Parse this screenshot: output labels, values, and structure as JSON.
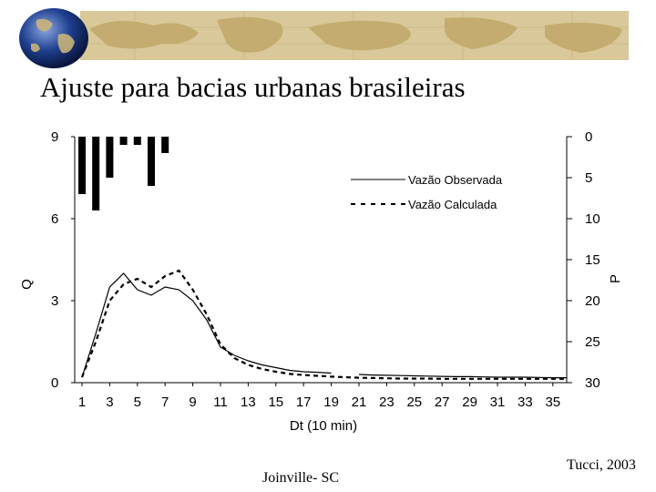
{
  "slide": {
    "title": "Ajuste para bacias urbanas brasileiras",
    "footer_left": "Joinville- SC",
    "footer_right": "Tucci, 2003"
  },
  "theme": {
    "banner_color": "#d9c89a",
    "map_color": "#c4ac70",
    "globe_ocean": "#1f3f8f",
    "globe_land": "#c9b27a"
  },
  "chart_data": {
    "type": "line",
    "xlabel": "Dt (10 min)",
    "ylabel": "Q",
    "y2label": "P",
    "ylim": [
      0,
      9
    ],
    "y2lim": [
      30,
      0
    ],
    "xlim": [
      1,
      36
    ],
    "yticks": [
      0,
      3,
      6,
      9
    ],
    "y2ticks": [
      0,
      5,
      10,
      15,
      20,
      25,
      30
    ],
    "xticks": [
      1,
      3,
      5,
      7,
      9,
      11,
      13,
      15,
      17,
      19,
      21,
      23,
      25,
      27,
      29,
      31,
      33,
      35
    ],
    "grid": false,
    "legend": "top-right",
    "series": [
      {
        "name": "Vazão Observada",
        "style": "solid",
        "x": [
          1,
          2,
          3,
          4,
          5,
          6,
          7,
          8,
          9,
          10,
          11,
          12,
          13,
          14,
          15,
          16,
          17,
          18,
          19,
          20,
          21,
          22,
          23,
          24,
          25,
          26,
          27,
          28,
          29,
          30,
          31,
          32,
          33,
          34,
          35,
          36
        ],
        "y": [
          0.2,
          1.8,
          3.5,
          4.0,
          3.4,
          3.2,
          3.5,
          3.4,
          3.0,
          2.3,
          1.3,
          1.0,
          0.8,
          0.65,
          0.55,
          0.45,
          0.4,
          0.38,
          0.35,
          null,
          0.3,
          0.28,
          0.27,
          0.26,
          0.25,
          0.24,
          0.23,
          0.22,
          0.22,
          0.21,
          0.2,
          0.2,
          0.2,
          0.19,
          0.18,
          0.18
        ]
      },
      {
        "name": "Vazão Calculada",
        "style": "dashed",
        "x": [
          1,
          2,
          3,
          4,
          5,
          6,
          7,
          8,
          9,
          10,
          11,
          12,
          13,
          14,
          15,
          16,
          17,
          18,
          19,
          20,
          21,
          22,
          23,
          24,
          25,
          26,
          27,
          28,
          29,
          30,
          31,
          32,
          33,
          34,
          35,
          36
        ],
        "y": [
          0.2,
          1.5,
          3.0,
          3.6,
          3.8,
          3.5,
          3.9,
          4.1,
          3.4,
          2.5,
          1.4,
          0.9,
          0.65,
          0.5,
          0.4,
          0.32,
          0.28,
          0.25,
          0.22,
          0.2,
          0.18,
          0.17,
          0.16,
          0.15,
          0.15,
          0.15,
          0.14,
          0.14,
          0.14,
          0.14,
          0.14,
          0.14,
          0.14,
          0.14,
          0.14,
          0.14
        ]
      },
      {
        "name": "P",
        "type": "bar",
        "axis": "right",
        "x": [
          1,
          2,
          3,
          4,
          5,
          6,
          7
        ],
        "y": [
          7,
          9,
          5,
          1,
          1,
          6,
          2
        ]
      }
    ]
  }
}
